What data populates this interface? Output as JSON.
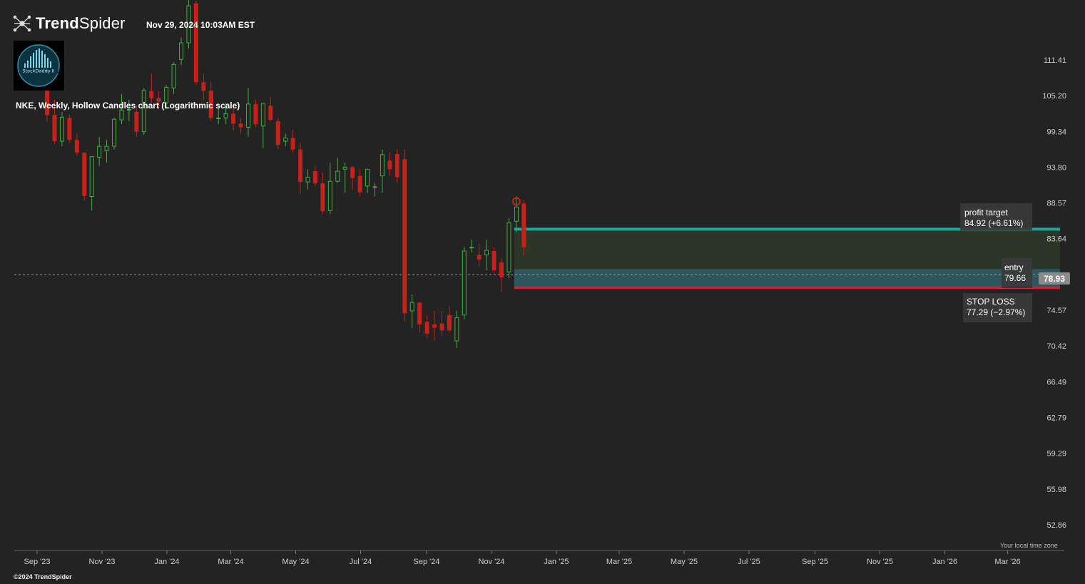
{
  "brand": {
    "name_bold": "Trend",
    "name_light": "Spider",
    "copyright": "©2024 TrendSpider"
  },
  "timestamp": "Nov 29, 2024 10:03AM EST",
  "avatar": {
    "label": "StockDaddy II"
  },
  "timezone_note": "Your local time zone",
  "colors": {
    "background": "#232323",
    "up": "#3fae3f",
    "down": "#c4221a",
    "trendline": "#e6b82a",
    "target": "#1aa89a",
    "stop": "#d4242c",
    "dotted": "#3fb94a"
  },
  "chart_data": {
    "type": "candlestick",
    "title": "NKE, Weekly, Hollow Candles chart (Logarithmic scale)",
    "y_scale": "log",
    "ylim": [
      51.0,
      118.0
    ],
    "y_ticks": [
      111.41,
      105.2,
      99.34,
      93.8,
      88.57,
      83.64,
      78.93,
      74.57,
      70.42,
      66.49,
      62.79,
      59.29,
      55.98,
      52.86
    ],
    "x_ticks": [
      "Sep '23",
      "Nov '23",
      "Jan '24",
      "Mar '24",
      "May '24",
      "Jul '24",
      "Sep '24",
      "Nov '24",
      "Jan '25",
      "Mar '25",
      "May '25",
      "Jul '25",
      "Sep '25",
      "Nov '25",
      "Jan '26",
      "Mar '26"
    ],
    "x_tick_dates": [
      "2023-09-01",
      "2023-11-01",
      "2024-01-01",
      "2024-03-01",
      "2024-05-01",
      "2024-07-01",
      "2024-09-01",
      "2024-11-01",
      "2025-01-01",
      "2025-03-01",
      "2025-05-01",
      "2025-07-01",
      "2025-09-01",
      "2025-11-01",
      "2026-01-01",
      "2026-03-01"
    ],
    "candles": [
      {
        "date": "2023-08-28",
        "o": 107.5,
        "h": 110.0,
        "l": 101.0,
        "c": 102.0
      },
      {
        "date": "2023-09-04",
        "o": 102.0,
        "h": 104.5,
        "l": 97.3,
        "c": 97.8
      },
      {
        "date": "2023-09-11",
        "o": 97.8,
        "h": 102.5,
        "l": 97.0,
        "c": 101.6
      },
      {
        "date": "2023-09-18",
        "o": 101.5,
        "h": 102.0,
        "l": 97.5,
        "c": 98.0
      },
      {
        "date": "2023-09-25",
        "o": 98.0,
        "h": 99.0,
        "l": 95.6,
        "c": 96.0
      },
      {
        "date": "2023-10-02",
        "o": 96.0,
        "h": 96.0,
        "l": 88.9,
        "c": 89.6
      },
      {
        "date": "2023-10-09",
        "o": 89.5,
        "h": 95.5,
        "l": 87.5,
        "c": 95.4
      },
      {
        "date": "2023-10-16",
        "o": 95.3,
        "h": 98.5,
        "l": 94.0,
        "c": 97.0
      },
      {
        "date": "2023-10-23",
        "o": 96.3,
        "h": 98.0,
        "l": 94.5,
        "c": 97.0
      },
      {
        "date": "2023-10-30",
        "o": 97.0,
        "h": 101.5,
        "l": 96.5,
        "c": 101.3
      },
      {
        "date": "2023-11-06",
        "o": 101.2,
        "h": 105.5,
        "l": 100.5,
        "c": 102.8
      },
      {
        "date": "2023-11-13",
        "o": 102.8,
        "h": 104.5,
        "l": 101.0,
        "c": 102.9
      },
      {
        "date": "2023-11-20",
        "o": 102.5,
        "h": 103.5,
        "l": 98.5,
        "c": 99.3
      },
      {
        "date": "2023-11-27",
        "o": 99.3,
        "h": 106.5,
        "l": 98.8,
        "c": 106.1
      },
      {
        "date": "2023-12-04",
        "o": 106.0,
        "h": 109.0,
        "l": 104.0,
        "c": 104.8
      },
      {
        "date": "2023-12-11",
        "o": 104.8,
        "h": 106.0,
        "l": 103.0,
        "c": 104.2
      },
      {
        "date": "2023-12-18",
        "o": 104.0,
        "h": 107.0,
        "l": 103.0,
        "c": 106.6
      },
      {
        "date": "2023-12-25",
        "o": 106.5,
        "h": 111.0,
        "l": 105.5,
        "c": 110.6
      },
      {
        "date": "2024-01-01",
        "o": 111.5,
        "h": 115.5,
        "l": 110.5,
        "c": 114.5
      },
      {
        "date": "2024-01-08",
        "o": 114.5,
        "h": 123.0,
        "l": 113.5,
        "c": 121.5
      },
      {
        "date": "2024-01-15",
        "o": 122.0,
        "h": 122.5,
        "l": 107.0,
        "c": 107.5
      },
      {
        "date": "2024-01-22",
        "o": 107.5,
        "h": 109.0,
        "l": 104.5,
        "c": 106.0
      },
      {
        "date": "2024-01-29",
        "o": 106.0,
        "h": 107.5,
        "l": 101.0,
        "c": 101.5
      },
      {
        "date": "2024-02-05",
        "o": 101.5,
        "h": 103.5,
        "l": 100.5,
        "c": 101.5
      },
      {
        "date": "2024-02-12",
        "o": 101.5,
        "h": 104.0,
        "l": 100.5,
        "c": 102.2
      },
      {
        "date": "2024-02-19",
        "o": 102.2,
        "h": 103.5,
        "l": 99.5,
        "c": 100.6
      },
      {
        "date": "2024-02-26",
        "o": 100.6,
        "h": 101.5,
        "l": 99.0,
        "c": 100.0
      },
      {
        "date": "2024-03-04",
        "o": 100.0,
        "h": 106.5,
        "l": 98.5,
        "c": 103.8
      },
      {
        "date": "2024-03-11",
        "o": 103.8,
        "h": 104.5,
        "l": 100.0,
        "c": 100.5
      },
      {
        "date": "2024-03-18",
        "o": 100.2,
        "h": 104.0,
        "l": 96.7,
        "c": 103.9
      },
      {
        "date": "2024-03-25",
        "o": 103.5,
        "h": 105.0,
        "l": 101.0,
        "c": 101.2
      },
      {
        "date": "2024-04-01",
        "o": 101.0,
        "h": 101.5,
        "l": 96.5,
        "c": 97.2
      },
      {
        "date": "2024-04-08",
        "o": 97.8,
        "h": 99.0,
        "l": 97.0,
        "c": 98.3
      },
      {
        "date": "2024-04-15",
        "o": 98.3,
        "h": 99.5,
        "l": 96.0,
        "c": 96.5
      },
      {
        "date": "2024-04-22",
        "o": 96.5,
        "h": 97.5,
        "l": 89.9,
        "c": 91.6
      },
      {
        "date": "2024-04-29",
        "o": 91.6,
        "h": 93.5,
        "l": 90.5,
        "c": 92.3
      },
      {
        "date": "2024-05-06",
        "o": 93.2,
        "h": 94.0,
        "l": 91.0,
        "c": 91.4
      },
      {
        "date": "2024-05-13",
        "o": 91.4,
        "h": 93.0,
        "l": 87.0,
        "c": 87.4
      },
      {
        "date": "2024-05-20",
        "o": 87.5,
        "h": 94.5,
        "l": 87.0,
        "c": 91.7
      },
      {
        "date": "2024-05-27",
        "o": 91.7,
        "h": 95.2,
        "l": 91.5,
        "c": 93.2
      },
      {
        "date": "2024-06-03",
        "o": 93.5,
        "h": 94.5,
        "l": 90.0,
        "c": 93.8
      },
      {
        "date": "2024-06-10",
        "o": 93.8,
        "h": 94.0,
        "l": 90.5,
        "c": 92.2
      },
      {
        "date": "2024-06-17",
        "o": 92.5,
        "h": 93.5,
        "l": 89.5,
        "c": 90.1
      },
      {
        "date": "2024-06-24",
        "o": 91.0,
        "h": 93.5,
        "l": 90.0,
        "c": 93.5
      },
      {
        "date": "2024-07-01",
        "o": 90.8,
        "h": 91.5,
        "l": 89.5,
        "c": 90.9
      },
      {
        "date": "2024-07-08",
        "o": 92.5,
        "h": 96.5,
        "l": 90.0,
        "c": 95.7
      },
      {
        "date": "2024-07-15",
        "o": 94.8,
        "h": 96.0,
        "l": 92.5,
        "c": 93.5
      },
      {
        "date": "2024-07-22",
        "o": 95.8,
        "h": 96.5,
        "l": 91.5,
        "c": 92.3
      },
      {
        "date": "2024-07-29",
        "o": 95.0,
        "h": 96.5,
        "l": 73.2,
        "c": 74.2
      },
      {
        "date": "2024-08-05",
        "o": 74.5,
        "h": 76.5,
        "l": 72.5,
        "c": 75.5
      },
      {
        "date": "2024-08-12",
        "o": 75.5,
        "h": 75.5,
        "l": 72.0,
        "c": 72.9
      },
      {
        "date": "2024-08-19",
        "o": 73.2,
        "h": 74.0,
        "l": 71.3,
        "c": 71.8
      },
      {
        "date": "2024-08-26",
        "o": 72.9,
        "h": 74.5,
        "l": 71.0,
        "c": 72.5
      },
      {
        "date": "2024-09-02",
        "o": 73.0,
        "h": 74.5,
        "l": 71.5,
        "c": 72.2
      },
      {
        "date": "2024-09-09",
        "o": 74.0,
        "h": 75.0,
        "l": 72.0,
        "c": 72.2
      },
      {
        "date": "2024-09-16",
        "o": 71.0,
        "h": 74.5,
        "l": 70.2,
        "c": 73.7
      },
      {
        "date": "2024-09-23",
        "o": 74.0,
        "h": 82.5,
        "l": 73.5,
        "c": 82.0
      },
      {
        "date": "2024-09-30",
        "o": 82.5,
        "h": 83.5,
        "l": 81.8,
        "c": 82.5
      },
      {
        "date": "2024-10-07",
        "o": 81.5,
        "h": 83.0,
        "l": 80.0,
        "c": 80.9
      },
      {
        "date": "2024-10-14",
        "o": 81.5,
        "h": 83.5,
        "l": 79.5,
        "c": 82.1
      },
      {
        "date": "2024-10-21",
        "o": 82.0,
        "h": 82.5,
        "l": 79.0,
        "c": 79.5
      },
      {
        "date": "2024-10-28",
        "o": 80.5,
        "h": 81.0,
        "l": 76.8,
        "c": 78.6
      },
      {
        "date": "2024-11-04",
        "o": 79.3,
        "h": 86.5,
        "l": 78.5,
        "c": 85.8
      },
      {
        "date": "2024-11-11",
        "o": 86.0,
        "h": 89.5,
        "l": 84.5,
        "c": 88.0
      },
      {
        "date": "2024-11-18",
        "o": 88.5,
        "h": 89.0,
        "l": 81.5,
        "c": 82.5
      }
    ],
    "lines": [],
    "annotations": [
      {
        "label": "profit target",
        "value": "84.92 (+6.61%)",
        "price": 84.92
      },
      {
        "label": "entry",
        "value": "79.66",
        "price": 79.66
      },
      {
        "label": "STOP LOSS",
        "value": "77.29 (−2.97%)",
        "price": 77.29
      }
    ],
    "last_price": "78.93"
  }
}
